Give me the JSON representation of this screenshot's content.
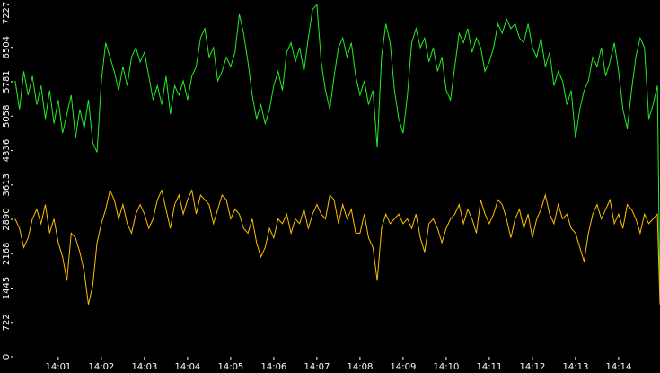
{
  "chart_data": {
    "type": "line",
    "x": [
      0,
      0.1,
      0.2,
      0.3,
      0.4,
      0.5,
      0.6,
      0.7,
      0.8,
      0.9,
      1,
      1.1,
      1.2,
      1.3,
      1.4,
      1.5,
      1.6,
      1.7,
      1.8,
      1.9,
      2,
      2.1,
      2.2,
      2.3,
      2.4,
      2.5,
      2.6,
      2.7,
      2.8,
      2.9,
      3,
      3.1,
      3.2,
      3.3,
      3.4,
      3.5,
      3.6,
      3.7,
      3.8,
      3.9,
      4,
      4.1,
      4.2,
      4.3,
      4.4,
      4.5,
      4.6,
      4.7,
      4.8,
      4.9,
      5,
      5.1,
      5.2,
      5.3,
      5.4,
      5.5,
      5.6,
      5.7,
      5.8,
      5.9,
      6,
      6.1,
      6.2,
      6.3,
      6.4,
      6.5,
      6.6,
      6.7,
      6.8,
      6.9,
      7,
      7.1,
      7.2,
      7.3,
      7.4,
      7.5,
      7.6,
      7.7,
      7.8,
      7.9,
      8,
      8.1,
      8.2,
      8.3,
      8.4,
      8.5,
      8.6,
      8.7,
      8.8,
      8.9,
      9,
      9.1,
      9.2,
      9.3,
      9.4,
      9.5,
      9.6,
      9.7,
      9.8,
      9.9,
      10,
      10.1,
      10.2,
      10.3,
      10.4,
      10.5,
      10.6,
      10.7,
      10.8,
      10.9,
      11,
      11.1,
      11.2,
      11.3,
      11.4,
      11.5,
      11.6,
      11.7,
      11.8,
      11.9,
      12,
      12.1,
      12.2,
      12.3,
      12.4,
      12.5,
      12.6,
      12.7,
      12.8,
      12.9,
      13,
      13.1,
      13.2,
      13.3,
      13.4,
      13.5,
      13.6,
      13.7,
      13.8,
      13.9,
      14,
      14.1,
      14.2,
      14.3,
      14.4,
      14.5,
      14.6,
      14.7,
      14.8,
      14.9,
      14.96
    ],
    "series": [
      {
        "color": "#22ee22",
        "values": [
          5800,
          5200,
          6000,
          5500,
          5900,
          5300,
          5700,
          5000,
          5600,
          4900,
          5400,
          4700,
          5100,
          5500,
          4600,
          5200,
          4800,
          5400,
          4500,
          4300,
          5800,
          6600,
          6300,
          6000,
          5600,
          6100,
          5700,
          6300,
          6500,
          6200,
          6400,
          5900,
          5400,
          5700,
          5300,
          5900,
          5100,
          5700,
          5500,
          5800,
          5400,
          5900,
          6100,
          6700,
          6900,
          6300,
          6500,
          5800,
          6000,
          6300,
          6100,
          6400,
          7200,
          6800,
          6200,
          5500,
          5000,
          5300,
          4900,
          5200,
          5700,
          6000,
          5600,
          6400,
          6600,
          6200,
          6500,
          6000,
          6700,
          7300,
          7400,
          6200,
          5600,
          5200,
          5900,
          6500,
          6700,
          6300,
          6600,
          5900,
          5500,
          5800,
          5300,
          5600,
          4400,
          6300,
          7000,
          6600,
          5600,
          5000,
          4700,
          5500,
          6600,
          6900,
          6500,
          6700,
          6200,
          6500,
          6000,
          6300,
          5600,
          5400,
          6100,
          6800,
          6600,
          6900,
          6400,
          6700,
          6500,
          6000,
          6200,
          6500,
          7000,
          6800,
          7100,
          6900,
          7000,
          6700,
          6600,
          7000,
          6500,
          6300,
          6700,
          6100,
          6400,
          5700,
          6000,
          5800,
          5300,
          5600,
          4600,
          5200,
          5600,
          5800,
          6300,
          6100,
          6500,
          5900,
          6200,
          6600,
          6000,
          5200,
          4800,
          5600,
          6300,
          6700,
          6500,
          5000,
          5300,
          5700,
          1200
        ]
      },
      {
        "color": "#ffc000",
        "values": [
          2900,
          2700,
          2300,
          2500,
          2900,
          3100,
          2800,
          3200,
          2600,
          2900,
          2400,
          2100,
          1600,
          2600,
          2500,
          2200,
          1800,
          1100,
          1500,
          2400,
          2800,
          3100,
          3500,
          3300,
          2900,
          3200,
          2800,
          2600,
          3000,
          3200,
          3000,
          2700,
          2900,
          3300,
          3500,
          3100,
          2700,
          3200,
          3400,
          3000,
          3300,
          3500,
          3000,
          3400,
          3300,
          3200,
          2800,
          3100,
          3400,
          3300,
          2900,
          3100,
          3000,
          2700,
          2600,
          2900,
          2400,
          2100,
          2300,
          2700,
          2500,
          2900,
          2800,
          3000,
          2600,
          2900,
          2800,
          3100,
          2700,
          3000,
          3200,
          3000,
          2900,
          3400,
          3300,
          2800,
          3200,
          2900,
          3100,
          2600,
          2600,
          3000,
          2500,
          2300,
          1600,
          2700,
          3000,
          2800,
          2900,
          3000,
          2800,
          2900,
          2700,
          3000,
          2500,
          2200,
          2800,
          2900,
          2700,
          2400,
          2700,
          2900,
          3000,
          3200,
          2800,
          3100,
          2900,
          2600,
          3300,
          3000,
          2800,
          3000,
          3300,
          3200,
          2900,
          2500,
          2900,
          3100,
          2700,
          3000,
          2500,
          2900,
          3100,
          3400,
          3000,
          2800,
          3200,
          2900,
          3000,
          2700,
          2600,
          2300,
          2000,
          2600,
          3000,
          3200,
          2900,
          3100,
          3300,
          2800,
          3000,
          2700,
          3200,
          3100,
          2900,
          2600,
          3000,
          2800,
          2900,
          3000,
          1100
        ]
      }
    ],
    "xlim": [
      -0.06,
      14.96
    ],
    "xticks": [
      {
        "value": 1,
        "label": "14:01"
      },
      {
        "value": 2,
        "label": "14:02"
      },
      {
        "value": 3,
        "label": "14:03"
      },
      {
        "value": 4,
        "label": "14:04"
      },
      {
        "value": 5,
        "label": "14:05"
      },
      {
        "value": 6,
        "label": "14:06"
      },
      {
        "value": 7,
        "label": "14:07"
      },
      {
        "value": 8,
        "label": "14:08"
      },
      {
        "value": 9,
        "label": "14:09"
      },
      {
        "value": 10,
        "label": "14:10"
      },
      {
        "value": 11,
        "label": "14:11"
      },
      {
        "value": 12,
        "label": "14:12"
      },
      {
        "value": 13,
        "label": "14:13"
      },
      {
        "value": 14,
        "label": "14:14"
      }
    ],
    "ylim": [
      0,
      7500
    ],
    "yticks": [
      0,
      722,
      1445,
      2168,
      2890,
      3613,
      4336,
      5058,
      5781,
      6504,
      7227
    ]
  }
}
